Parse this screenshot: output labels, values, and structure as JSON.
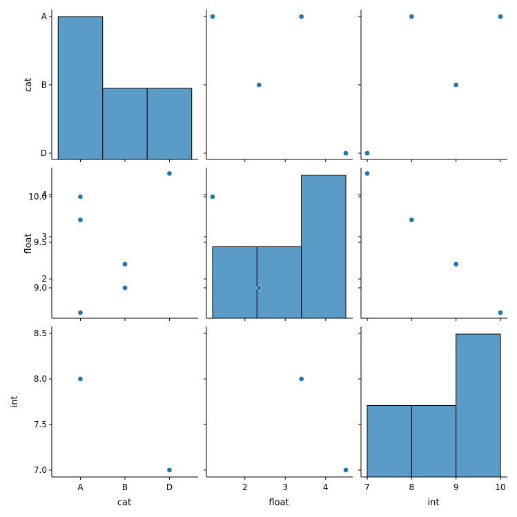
{
  "colors": {
    "primary": "#1f77b4",
    "hist_fill": "#5b9bc8",
    "axis": "#000000"
  },
  "chart_data": {
    "type": "pairplot",
    "variables": [
      "cat",
      "float",
      "int"
    ],
    "axis_labels": {
      "cat": "cat",
      "float": "float",
      "int": "int"
    },
    "categories": [
      "A",
      "B",
      "D"
    ],
    "ticks": {
      "cat": [
        "A",
        "B",
        "D"
      ],
      "float": [
        "2",
        "3",
        "4"
      ],
      "int_x": [
        "7",
        "8",
        "9",
        "10"
      ],
      "int_y": [
        "7.0",
        "7.5",
        "8.0",
        "8.5",
        "9.0",
        "9.5",
        "10.0"
      ]
    },
    "records": [
      {
        "cat": "A",
        "float": 1.2,
        "int": 10
      },
      {
        "cat": "A",
        "float": 3.4,
        "int": 8
      },
      {
        "cat": "B",
        "float": 2.35,
        "int": 9
      },
      {
        "cat": "D",
        "float": 4.5,
        "int": 7
      }
    ],
    "histograms": {
      "cat": {
        "bins": [
          "A",
          "B",
          "D"
        ],
        "counts": [
          2,
          1,
          1
        ]
      },
      "float": {
        "edges": [
          1.2,
          2.3,
          3.4,
          4.5
        ],
        "counts": [
          1,
          1,
          2
        ]
      },
      "int": {
        "edges": [
          7,
          8,
          9,
          10
        ],
        "counts": [
          1,
          1,
          2
        ]
      }
    }
  }
}
